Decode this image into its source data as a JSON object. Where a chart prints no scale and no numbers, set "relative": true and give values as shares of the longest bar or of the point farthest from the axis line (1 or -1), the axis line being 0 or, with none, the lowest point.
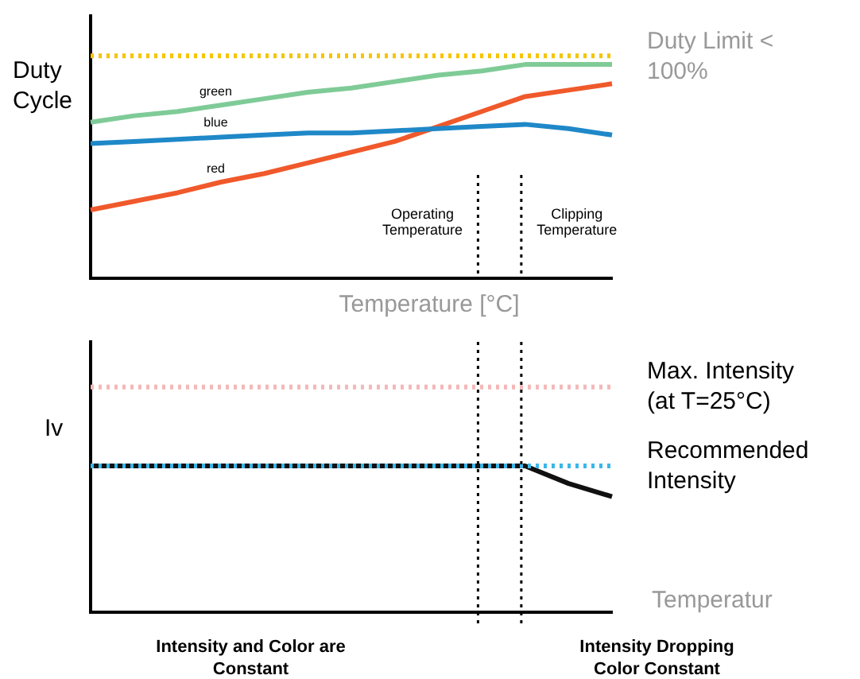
{
  "chart_data": [
    {
      "type": "line",
      "relative": true,
      "ylabel": "Duty Cycle",
      "xlabel": "Temperature [°C]",
      "legend": false,
      "categories": [
        null,
        null,
        null,
        null,
        null,
        null,
        null,
        null,
        null,
        null,
        null,
        null,
        null
      ],
      "series": [
        {
          "name": "green",
          "color": "#7fcb97",
          "values": [
            0.73,
            0.76,
            0.78,
            0.81,
            0.84,
            0.87,
            0.89,
            0.92,
            0.95,
            0.97,
            1,
            1,
            1
          ]
        },
        {
          "name": "blue",
          "color": "#1f88c8",
          "values": [
            0.63,
            0.64,
            0.65,
            0.66,
            0.67,
            0.68,
            0.68,
            0.69,
            0.7,
            0.71,
            0.72,
            0.7,
            0.67
          ]
        },
        {
          "name": "red",
          "color": "#f0592b",
          "values": [
            0.32,
            0.36,
            0.4,
            0.45,
            0.49,
            0.54,
            0.59,
            0.64,
            0.71,
            0.78,
            0.85,
            0.88,
            0.91
          ]
        }
      ],
      "ref_lines": [
        {
          "axis": "y",
          "value": 1.04,
          "label": "Duty Limit < 100%",
          "color": "#f5c400",
          "line_style": "dotted"
        }
      ],
      "annotations": [
        "Operating Temperature",
        "Clipping Temperature"
      ]
    },
    {
      "type": "line",
      "relative": true,
      "ylabel": "Iv",
      "xlabel": "Temperatur",
      "legend": false,
      "categories": [
        null,
        null,
        null,
        null,
        null,
        null,
        null,
        null,
        null,
        null,
        null,
        null,
        null
      ],
      "series": [
        {
          "color": "#111111",
          "values": [
            1,
            1,
            1,
            1,
            1,
            1,
            1,
            1,
            1,
            1,
            1,
            0.88,
            0.79
          ]
        }
      ],
      "ref_lines": [
        {
          "axis": "y",
          "value": 1.54,
          "color": "#f4b8b8",
          "line_style": "dotted"
        },
        {
          "axis": "y",
          "value": 1,
          "label": "Recommended Intensity",
          "color": "#3ab7e8",
          "line_style": "dotted"
        }
      ],
      "annotations": [
        "Max. Intensity (at T=25°C)",
        "Intensity and Color are Constant",
        "Intensity Dropping Color Constant"
      ]
    }
  ]
}
